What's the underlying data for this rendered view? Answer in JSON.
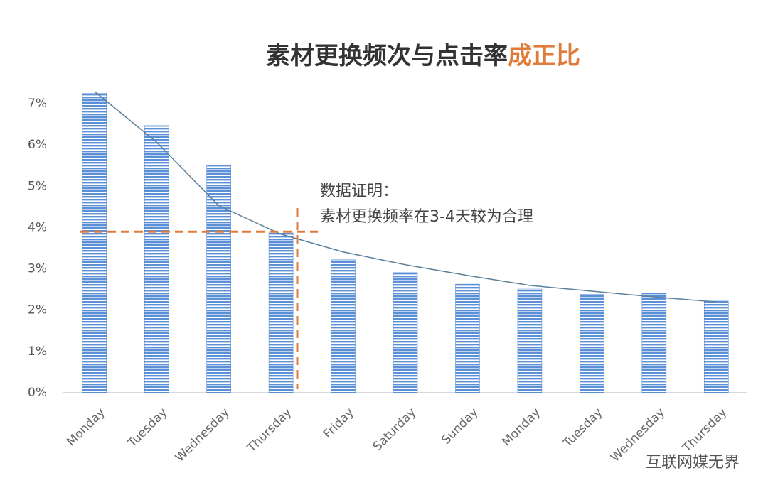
{
  "chart_data": {
    "type": "bar",
    "title": "素材更换频次与点击率",
    "title_highlight": "成正比",
    "title_highlight_color": "#e07b39",
    "annotation": [
      "数据证明：",
      "素材更换频率在3-4天较为合理"
    ],
    "watermark": "互联网媒无界",
    "categories": [
      "Monday",
      "Tuesday",
      "Wednesday",
      "Thursday",
      "Friday",
      "Saturday",
      "Sunday",
      "Monday",
      "Tuesday",
      "Wednesday",
      "Thursday"
    ],
    "values": [
      7.25,
      6.47,
      5.51,
      3.9,
      3.22,
      2.91,
      2.63,
      2.51,
      2.38,
      2.41,
      2.22
    ],
    "color": "#5b8fd6",
    "trendline": {
      "values": [
        7.3,
        6.07,
        4.53,
        3.84,
        3.41,
        3.1,
        2.84,
        2.6,
        2.46,
        2.32,
        2.2
      ],
      "color": "#5a7f9a"
    },
    "reference_line": {
      "value": 3.9,
      "color": "#e07b39"
    },
    "ylim": [
      0,
      7.5
    ],
    "yticks": [
      {
        "value": 0,
        "label": "0%"
      },
      {
        "value": 1,
        "label": "1%"
      },
      {
        "value": 2,
        "label": "2%"
      },
      {
        "value": 3,
        "label": "3%"
      },
      {
        "value": 4,
        "label": "4%"
      },
      {
        "value": 5,
        "label": "5%"
      },
      {
        "value": 6,
        "label": "6%"
      },
      {
        "value": 7,
        "label": "7%"
      }
    ],
    "grid": false
  }
}
